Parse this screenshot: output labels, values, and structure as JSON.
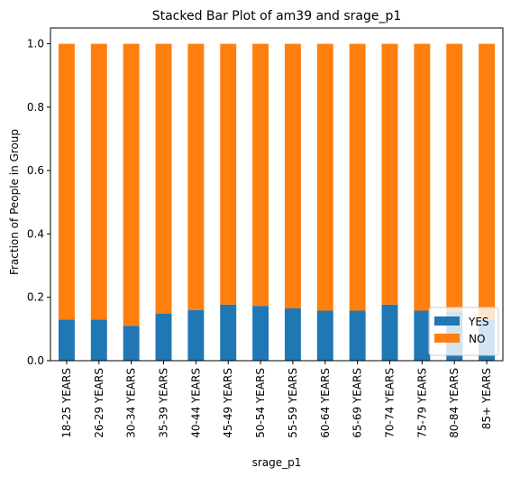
{
  "chart_data": {
    "type": "bar",
    "stacked": true,
    "title": "Stacked Bar Plot of am39 and srage_p1",
    "xlabel": "srage_p1",
    "ylabel": "Fraction of People in Group",
    "ylim": [
      0,
      1.05
    ],
    "yticks": [
      "0.0",
      "0.2",
      "0.4",
      "0.6",
      "0.8",
      "1.0"
    ],
    "categories": [
      "18-25 YEARS",
      "26-29 YEARS",
      "30-34 YEARS",
      "35-39 YEARS",
      "40-44 YEARS",
      "45-49 YEARS",
      "50-54 YEARS",
      "55-59 YEARS",
      "60-64 YEARS",
      "65-69 YEARS",
      "70-74 YEARS",
      "75-79 YEARS",
      "80-84 YEARS",
      "85+ YEARS"
    ],
    "series": [
      {
        "name": "YES",
        "color": "#1f77b4",
        "values": [
          0.13,
          0.13,
          0.11,
          0.148,
          0.16,
          0.177,
          0.173,
          0.165,
          0.158,
          0.158,
          0.177,
          0.158,
          0.155,
          0.13
        ]
      },
      {
        "name": "NO",
        "color": "#ff7f0e",
        "values": [
          0.87,
          0.87,
          0.89,
          0.852,
          0.84,
          0.823,
          0.827,
          0.835,
          0.842,
          0.842,
          0.823,
          0.842,
          0.845,
          0.87
        ]
      }
    ],
    "legend_position": "lower-right",
    "grid": false
  }
}
